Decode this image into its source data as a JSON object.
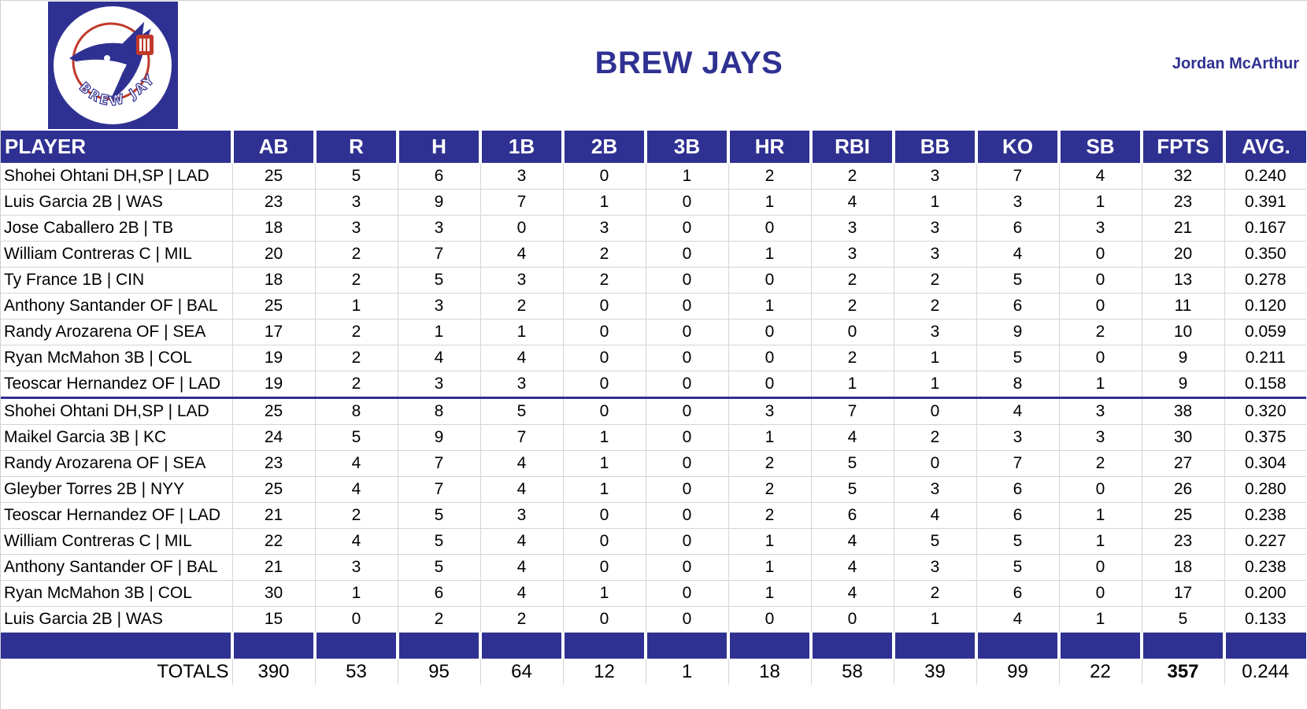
{
  "header": {
    "team_title": "BREW JAYS",
    "owner_name": "Jordan McArthur",
    "logo_text": "BREW JAYS",
    "brand_color": "#2f3192",
    "logo_accent_color": "#c0392b"
  },
  "table": {
    "columns": [
      "PLAYER",
      "AB",
      "R",
      "H",
      "1B",
      "2B",
      "3B",
      "HR",
      "RBI",
      "BB",
      "KO",
      "SB",
      "FPTS",
      "AVG."
    ],
    "rows": [
      [
        "Shohei Ohtani DH,SP | LAD",
        "25",
        "5",
        "6",
        "3",
        "0",
        "1",
        "2",
        "2",
        "3",
        "7",
        "4",
        "32",
        "0.240"
      ],
      [
        "Luis Garcia 2B | WAS",
        "23",
        "3",
        "9",
        "7",
        "1",
        "0",
        "1",
        "4",
        "1",
        "3",
        "1",
        "23",
        "0.391"
      ],
      [
        "Jose Caballero 2B | TB",
        "18",
        "3",
        "3",
        "0",
        "3",
        "0",
        "0",
        "3",
        "3",
        "6",
        "3",
        "21",
        "0.167"
      ],
      [
        "William Contreras C | MIL",
        "20",
        "2",
        "7",
        "4",
        "2",
        "0",
        "1",
        "3",
        "3",
        "4",
        "0",
        "20",
        "0.350"
      ],
      [
        "Ty France 1B | CIN",
        "18",
        "2",
        "5",
        "3",
        "2",
        "0",
        "0",
        "2",
        "2",
        "5",
        "0",
        "13",
        "0.278"
      ],
      [
        "Anthony Santander OF | BAL",
        "25",
        "1",
        "3",
        "2",
        "0",
        "0",
        "1",
        "2",
        "2",
        "6",
        "0",
        "11",
        "0.120"
      ],
      [
        "Randy Arozarena OF | SEA",
        "17",
        "2",
        "1",
        "1",
        "0",
        "0",
        "0",
        "0",
        "3",
        "9",
        "2",
        "10",
        "0.059"
      ],
      [
        "Ryan McMahon 3B | COL",
        "19",
        "2",
        "4",
        "4",
        "0",
        "0",
        "0",
        "2",
        "1",
        "5",
        "0",
        "9",
        "0.211"
      ],
      [
        "Teoscar Hernandez OF | LAD",
        "19",
        "2",
        "3",
        "3",
        "0",
        "0",
        "0",
        "1",
        "1",
        "8",
        "1",
        "9",
        "0.158"
      ],
      [
        "Shohei Ohtani DH,SP | LAD",
        "25",
        "8",
        "8",
        "5",
        "0",
        "0",
        "3",
        "7",
        "0",
        "4",
        "3",
        "38",
        "0.320"
      ],
      [
        "Maikel Garcia 3B | KC",
        "24",
        "5",
        "9",
        "7",
        "1",
        "0",
        "1",
        "4",
        "2",
        "3",
        "3",
        "30",
        "0.375"
      ],
      [
        "Randy Arozarena OF | SEA",
        "23",
        "4",
        "7",
        "4",
        "1",
        "0",
        "2",
        "5",
        "0",
        "7",
        "2",
        "27",
        "0.304"
      ],
      [
        "Gleyber Torres 2B | NYY",
        "25",
        "4",
        "7",
        "4",
        "1",
        "0",
        "2",
        "5",
        "3",
        "6",
        "0",
        "26",
        "0.280"
      ],
      [
        "Teoscar Hernandez OF | LAD",
        "21",
        "2",
        "5",
        "3",
        "0",
        "0",
        "2",
        "6",
        "4",
        "6",
        "1",
        "25",
        "0.238"
      ],
      [
        "William Contreras C | MIL",
        "22",
        "4",
        "5",
        "4",
        "0",
        "0",
        "1",
        "4",
        "5",
        "5",
        "1",
        "23",
        "0.227"
      ],
      [
        "Anthony Santander OF | BAL",
        "21",
        "3",
        "5",
        "4",
        "0",
        "0",
        "1",
        "4",
        "3",
        "5",
        "0",
        "18",
        "0.238"
      ],
      [
        "Ryan McMahon 3B | COL",
        "30",
        "1",
        "6",
        "4",
        "1",
        "0",
        "1",
        "4",
        "2",
        "6",
        "0",
        "17",
        "0.200"
      ],
      [
        "Luis Garcia 2B | WAS",
        "15",
        "0",
        "2",
        "2",
        "0",
        "0",
        "0",
        "0",
        "1",
        "4",
        "1",
        "5",
        "0.133"
      ]
    ],
    "totals": [
      "TOTALS",
      "390",
      "53",
      "95",
      "64",
      "12",
      "1",
      "18",
      "58",
      "39",
      "99",
      "22",
      "357",
      "0.244"
    ]
  }
}
